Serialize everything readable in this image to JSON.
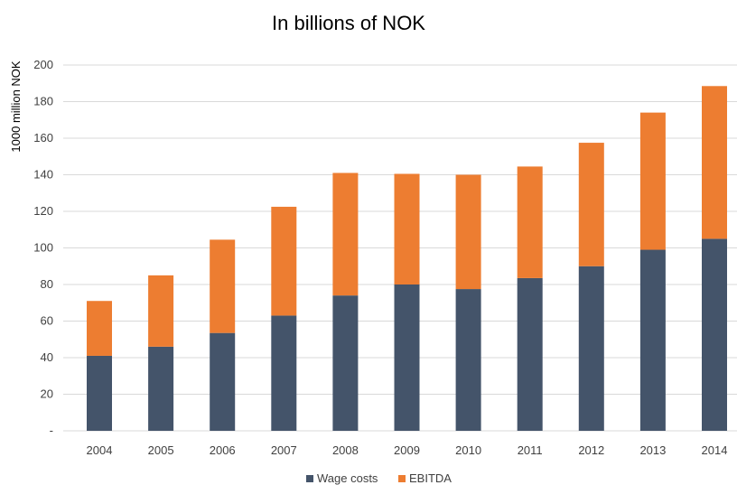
{
  "chart_data": {
    "type": "bar",
    "stacked": true,
    "title": "In billions of NOK",
    "xlabel": "",
    "ylabel": "1000 million NOK",
    "categories": [
      "2004",
      "2005",
      "2006",
      "2007",
      "2008",
      "2009",
      "2010",
      "2011",
      "2012",
      "2013",
      "2014"
    ],
    "series": [
      {
        "name": "Wage costs",
        "color": "#44546a",
        "values": [
          41,
          46,
          53.5,
          63,
          74,
          80,
          77.5,
          83.5,
          90,
          99,
          105
        ]
      },
      {
        "name": "EBITDA",
        "color": "#ed7d31",
        "values": [
          30,
          39,
          51,
          59.5,
          67,
          60.5,
          62.5,
          61,
          67.5,
          75,
          83.5
        ]
      }
    ],
    "ylim": [
      0,
      200
    ],
    "yticks": [
      0,
      20,
      40,
      60,
      80,
      100,
      120,
      140,
      160,
      180,
      200
    ],
    "ytick_labels": [
      "-",
      "20",
      "40",
      "60",
      "80",
      "100",
      "120",
      "140",
      "160",
      "180",
      "200"
    ],
    "grid": true,
    "legend_position": "bottom"
  }
}
